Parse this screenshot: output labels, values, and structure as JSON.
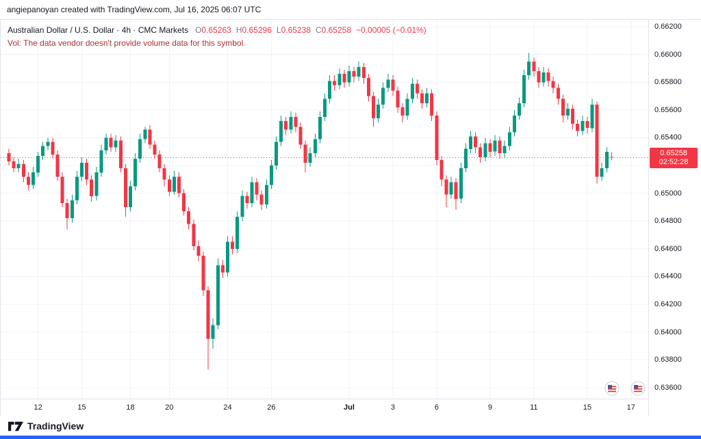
{
  "header": {
    "attribution": "angiepanoyan created with TradingView.com, Jul 16, 2025 06:07 UTC"
  },
  "legend": {
    "symbol_title": "Australian Dollar / U.S. Dollar · 4h · CMC Markets",
    "o_label": "O",
    "o_value": "0.65263",
    "h_label": "H",
    "h_value": "0.65296",
    "l_label": "L",
    "l_value": "0.65238",
    "c_label": "C",
    "c_value": "0.65258",
    "change": "−0.00005 (−0.01%)",
    "volume_message": "Vol: The data vendor doesn't provide volume data for this symbol.",
    "volume_message_color": "#a63333"
  },
  "footer": {
    "logo_text": "TradingView"
  },
  "icons": {
    "logo": "tradingview-logo-icon",
    "event_markers": [
      "us-flag-event-icon",
      "us-flag-event-icon"
    ]
  },
  "chart_data": {
    "type": "candlestick",
    "title": "Australian Dollar / U.S. Dollar",
    "interval": "4h",
    "exchange": "CMC Markets",
    "ohlc_current": {
      "open": 0.65263,
      "high": 0.65296,
      "low": 0.65238,
      "close": 0.65258,
      "change": -5e-05,
      "change_pct": "-0.01%"
    },
    "last": {
      "price": "0.65258",
      "countdown": "02:52:28"
    },
    "price_axis": {
      "min": 0.6352,
      "max": 0.6625,
      "labels": [
        "0.66200",
        "0.66000",
        "0.65800",
        "0.65600",
        "0.65400",
        "0.65200",
        "0.65000",
        "0.64800",
        "0.64600",
        "0.64400",
        "0.64200",
        "0.64000",
        "0.63800",
        "0.63600"
      ]
    },
    "time_axis": {
      "labels": [
        {
          "t": "12",
          "i": 6
        },
        {
          "t": "15",
          "i": 15
        },
        {
          "t": "18",
          "i": 25
        },
        {
          "t": "20",
          "i": 33
        },
        {
          "t": "24",
          "i": 45
        },
        {
          "t": "26",
          "i": 54
        },
        {
          "t": "Jul",
          "i": 70,
          "major": true
        },
        {
          "t": "3",
          "i": 79
        },
        {
          "t": "6",
          "i": 88
        },
        {
          "t": "9",
          "i": 99
        },
        {
          "t": "11",
          "i": 108
        },
        {
          "t": "15",
          "i": 119
        },
        {
          "t": "17",
          "i": 128
        }
      ]
    },
    "colors": {
      "up": "#089981",
      "down": "#f23645",
      "grid": "#f1f3f8",
      "axis_text": "#131722",
      "last_line": "#f23645",
      "badge_bg": "#f23645",
      "accent_bar": "#2962ff"
    },
    "candles": [
      [
        0.6529,
        0.6532,
        0.652,
        0.6523
      ],
      [
        0.6523,
        0.6526,
        0.6515,
        0.6518
      ],
      [
        0.6518,
        0.6525,
        0.6515,
        0.6521
      ],
      [
        0.6521,
        0.6524,
        0.6508,
        0.6512
      ],
      [
        0.6512,
        0.6515,
        0.6502,
        0.6506
      ],
      [
        0.6506,
        0.6519,
        0.6503,
        0.6515
      ],
      [
        0.6515,
        0.653,
        0.6512,
        0.6527
      ],
      [
        0.6527,
        0.6537,
        0.6524,
        0.6534
      ],
      [
        0.6534,
        0.654,
        0.6531,
        0.6537
      ],
      [
        0.6537,
        0.654,
        0.6525,
        0.6528
      ],
      [
        0.6528,
        0.6531,
        0.6509,
        0.6512
      ],
      [
        0.6512,
        0.6515,
        0.649,
        0.6493
      ],
      [
        0.6493,
        0.6496,
        0.6474,
        0.6482
      ],
      [
        0.6482,
        0.6499,
        0.6479,
        0.6495
      ],
      [
        0.6495,
        0.6516,
        0.6492,
        0.6512
      ],
      [
        0.6512,
        0.6526,
        0.6509,
        0.6522
      ],
      [
        0.6522,
        0.6525,
        0.6506,
        0.651
      ],
      [
        0.651,
        0.6513,
        0.6494,
        0.6498
      ],
      [
        0.6498,
        0.6519,
        0.6495,
        0.6515
      ],
      [
        0.6515,
        0.6535,
        0.6512,
        0.6531
      ],
      [
        0.6531,
        0.6543,
        0.6528,
        0.654
      ],
      [
        0.654,
        0.6543,
        0.653,
        0.6533
      ],
      [
        0.6533,
        0.6542,
        0.653,
        0.6538
      ],
      [
        0.6538,
        0.6541,
        0.6515,
        0.6518
      ],
      [
        0.6518,
        0.6521,
        0.6483,
        0.649
      ],
      [
        0.649,
        0.6509,
        0.6487,
        0.6505
      ],
      [
        0.6505,
        0.6529,
        0.6502,
        0.6525
      ],
      [
        0.6525,
        0.6543,
        0.6522,
        0.6539
      ],
      [
        0.6539,
        0.6548,
        0.6536,
        0.6546
      ],
      [
        0.6546,
        0.6549,
        0.6532,
        0.6535
      ],
      [
        0.6535,
        0.6538,
        0.6525,
        0.6528
      ],
      [
        0.6528,
        0.6531,
        0.6515,
        0.6518
      ],
      [
        0.6518,
        0.6521,
        0.6505,
        0.651
      ],
      [
        0.651,
        0.6513,
        0.6498,
        0.6501
      ],
      [
        0.6501,
        0.6516,
        0.6499,
        0.6512
      ],
      [
        0.6512,
        0.6515,
        0.6497,
        0.65
      ],
      [
        0.65,
        0.6503,
        0.6484,
        0.6487
      ],
      [
        0.6487,
        0.649,
        0.6474,
        0.6478
      ],
      [
        0.6478,
        0.6481,
        0.6459,
        0.6462
      ],
      [
        0.6462,
        0.6466,
        0.6451,
        0.6455
      ],
      [
        0.6455,
        0.6458,
        0.6426,
        0.643
      ],
      [
        0.643,
        0.6433,
        0.6373,
        0.6395
      ],
      [
        0.6395,
        0.641,
        0.6388,
        0.6405
      ],
      [
        0.6405,
        0.6453,
        0.6402,
        0.6448
      ],
      [
        0.6448,
        0.6452,
        0.6439,
        0.6443
      ],
      [
        0.6443,
        0.6469,
        0.644,
        0.6465
      ],
      [
        0.6465,
        0.6469,
        0.6456,
        0.646
      ],
      [
        0.646,
        0.6487,
        0.6457,
        0.6483
      ],
      [
        0.6483,
        0.6502,
        0.648,
        0.6498
      ],
      [
        0.6498,
        0.6501,
        0.6489,
        0.6493
      ],
      [
        0.6493,
        0.6512,
        0.649,
        0.6508
      ],
      [
        0.6508,
        0.6511,
        0.6495,
        0.6499
      ],
      [
        0.6499,
        0.6502,
        0.6488,
        0.6492
      ],
      [
        0.6492,
        0.651,
        0.6489,
        0.6506
      ],
      [
        0.6506,
        0.6524,
        0.6503,
        0.652
      ],
      [
        0.652,
        0.6541,
        0.6517,
        0.6537
      ],
      [
        0.6537,
        0.6556,
        0.6534,
        0.6552
      ],
      [
        0.6552,
        0.6555,
        0.6542,
        0.6546
      ],
      [
        0.6546,
        0.6559,
        0.6543,
        0.6555
      ],
      [
        0.6555,
        0.6558,
        0.6544,
        0.6548
      ],
      [
        0.6548,
        0.6551,
        0.6532,
        0.6535
      ],
      [
        0.6535,
        0.6538,
        0.6515,
        0.6522
      ],
      [
        0.6522,
        0.6533,
        0.6519,
        0.6529
      ],
      [
        0.6529,
        0.6543,
        0.6526,
        0.6539
      ],
      [
        0.6539,
        0.6559,
        0.6536,
        0.6555
      ],
      [
        0.6555,
        0.6572,
        0.6552,
        0.6568
      ],
      [
        0.6568,
        0.6585,
        0.6565,
        0.6581
      ],
      [
        0.6581,
        0.6585,
        0.6574,
        0.6578
      ],
      [
        0.6578,
        0.659,
        0.6575,
        0.6586
      ],
      [
        0.6586,
        0.6589,
        0.6576,
        0.658
      ],
      [
        0.658,
        0.6592,
        0.6577,
        0.6588
      ],
      [
        0.6588,
        0.6591,
        0.658,
        0.6584
      ],
      [
        0.6584,
        0.6595,
        0.6581,
        0.6591
      ],
      [
        0.6591,
        0.6594,
        0.6579,
        0.6583
      ],
      [
        0.6583,
        0.6586,
        0.6566,
        0.657
      ],
      [
        0.657,
        0.6573,
        0.6548,
        0.6554
      ],
      [
        0.6554,
        0.6568,
        0.6551,
        0.6564
      ],
      [
        0.6564,
        0.658,
        0.6561,
        0.6576
      ],
      [
        0.6576,
        0.6586,
        0.6573,
        0.6582
      ],
      [
        0.6582,
        0.6585,
        0.657,
        0.6574
      ],
      [
        0.6574,
        0.6577,
        0.6558,
        0.6562
      ],
      [
        0.6562,
        0.6565,
        0.6551,
        0.6556
      ],
      [
        0.6556,
        0.6572,
        0.6553,
        0.6568
      ],
      [
        0.6568,
        0.6583,
        0.6565,
        0.6579
      ],
      [
        0.6579,
        0.6582,
        0.6568,
        0.6572
      ],
      [
        0.6572,
        0.6575,
        0.6561,
        0.6565
      ],
      [
        0.6565,
        0.6576,
        0.6562,
        0.6572
      ],
      [
        0.6572,
        0.6575,
        0.6552,
        0.6556
      ],
      [
        0.6556,
        0.6559,
        0.652,
        0.6524
      ],
      [
        0.6524,
        0.6527,
        0.6505,
        0.651
      ],
      [
        0.651,
        0.6513,
        0.649,
        0.6499
      ],
      [
        0.6499,
        0.6512,
        0.6496,
        0.6508
      ],
      [
        0.6508,
        0.6511,
        0.6488,
        0.6496
      ],
      [
        0.6496,
        0.6522,
        0.6493,
        0.6518
      ],
      [
        0.6518,
        0.6536,
        0.6515,
        0.6532
      ],
      [
        0.6532,
        0.6545,
        0.6529,
        0.6541
      ],
      [
        0.6541,
        0.6544,
        0.6529,
        0.6533
      ],
      [
        0.6533,
        0.6536,
        0.6522,
        0.6526
      ],
      [
        0.6526,
        0.654,
        0.6523,
        0.6536
      ],
      [
        0.6536,
        0.6539,
        0.6526,
        0.653
      ],
      [
        0.653,
        0.6542,
        0.6527,
        0.6538
      ],
      [
        0.6538,
        0.6541,
        0.6525,
        0.6529
      ],
      [
        0.6529,
        0.6538,
        0.6526,
        0.6534
      ],
      [
        0.6534,
        0.6548,
        0.6531,
        0.6544
      ],
      [
        0.6544,
        0.656,
        0.6541,
        0.6556
      ],
      [
        0.6556,
        0.6569,
        0.6553,
        0.6565
      ],
      [
        0.6565,
        0.6589,
        0.6562,
        0.6585
      ],
      [
        0.6585,
        0.6601,
        0.6582,
        0.6595
      ],
      [
        0.6595,
        0.6598,
        0.6584,
        0.6588
      ],
      [
        0.6588,
        0.6591,
        0.6576,
        0.658
      ],
      [
        0.658,
        0.6591,
        0.6577,
        0.6587
      ],
      [
        0.6587,
        0.659,
        0.6577,
        0.6581
      ],
      [
        0.6581,
        0.6584,
        0.6572,
        0.6576
      ],
      [
        0.6576,
        0.6579,
        0.6564,
        0.6568
      ],
      [
        0.6568,
        0.6571,
        0.6551,
        0.6556
      ],
      [
        0.6556,
        0.6565,
        0.6553,
        0.6561
      ],
      [
        0.6561,
        0.6564,
        0.6546,
        0.655
      ],
      [
        0.655,
        0.6553,
        0.6541,
        0.6545
      ],
      [
        0.6545,
        0.6556,
        0.6542,
        0.6552
      ],
      [
        0.6552,
        0.6555,
        0.6543,
        0.6547
      ],
      [
        0.6547,
        0.6568,
        0.6544,
        0.6564
      ],
      [
        0.6564,
        0.6566,
        0.6507,
        0.6512
      ],
      [
        0.6512,
        0.6522,
        0.6509,
        0.6518
      ],
      [
        0.6518,
        0.6533,
        0.6515,
        0.653
      ],
      [
        0.65263,
        0.65296,
        0.65238,
        0.65258
      ]
    ]
  }
}
